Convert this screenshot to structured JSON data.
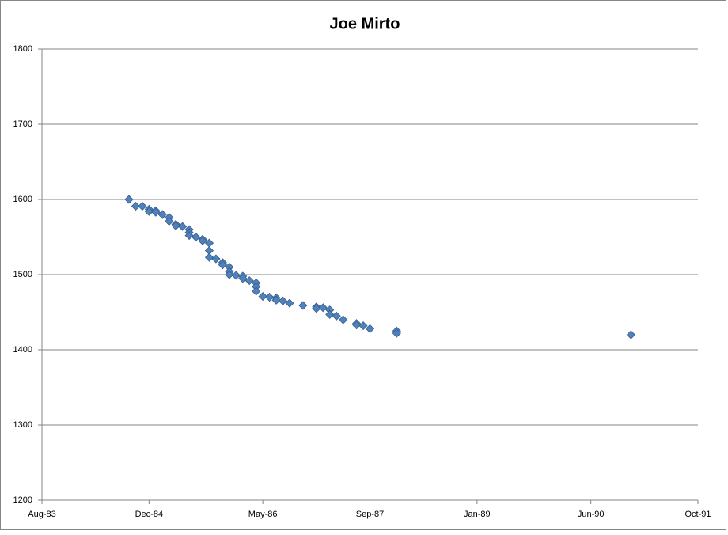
{
  "chart_data": {
    "type": "scatter",
    "title": "Joe Mirto",
    "x": [
      "1984-09",
      "1984-10",
      "1984-11",
      "1984-12",
      "1984-12",
      "1985-01",
      "1985-01",
      "1985-02",
      "1985-02",
      "1985-03",
      "1985-03",
      "1985-04",
      "1985-04",
      "1985-05",
      "1985-06",
      "1985-06",
      "1985-06",
      "1985-07",
      "1985-08",
      "1985-08",
      "1985-09",
      "1985-09",
      "1985-09",
      "1985-10",
      "1985-11",
      "1985-11",
      "1985-12",
      "1985-12",
      "1985-12",
      "1986-01",
      "1986-02",
      "1986-02",
      "1986-03",
      "1986-04",
      "1986-04",
      "1986-04",
      "1986-05",
      "1986-06",
      "1986-07",
      "1986-07",
      "1986-08",
      "1986-09",
      "1986-11",
      "1987-01",
      "1987-01",
      "1987-02",
      "1987-03",
      "1987-03",
      "1987-04",
      "1987-05",
      "1987-07",
      "1987-07",
      "1987-08",
      "1987-09",
      "1988-01",
      "1988-01",
      "1990-12"
    ],
    "values": [
      1600,
      1591,
      1591,
      1587,
      1584,
      1585,
      1583,
      1580,
      1580,
      1576,
      1571,
      1567,
      1565,
      1564,
      1560,
      1556,
      1552,
      1550,
      1547,
      1545,
      1542,
      1532,
      1523,
      1521,
      1516,
      1513,
      1510,
      1504,
      1500,
      1499,
      1498,
      1495,
      1492,
      1489,
      1484,
      1478,
      1471,
      1470,
      1469,
      1466,
      1465,
      1462,
      1459,
      1457,
      1455,
      1456,
      1453,
      1447,
      1445,
      1440,
      1435,
      1433,
      1432,
      1428,
      1425,
      1422,
      1420
    ],
    "color": "#4f81bd",
    "xlim": [
      "1983-08",
      "1991-10"
    ],
    "xticks": [
      {
        "value": "1983-08",
        "label": "Aug-83"
      },
      {
        "value": "1984-12",
        "label": "Dec-84"
      },
      {
        "value": "1986-05",
        "label": "May-86"
      },
      {
        "value": "1987-09",
        "label": "Sep-87"
      },
      {
        "value": "1989-01",
        "label": "Jan-89"
      },
      {
        "value": "1990-06",
        "label": "Jun-90"
      },
      {
        "value": "1991-10",
        "label": "Oct-91"
      }
    ],
    "ylim": [
      1200,
      1800
    ],
    "yticks": [
      1200,
      1300,
      1400,
      1500,
      1600,
      1700,
      1800
    ],
    "grid": true
  }
}
